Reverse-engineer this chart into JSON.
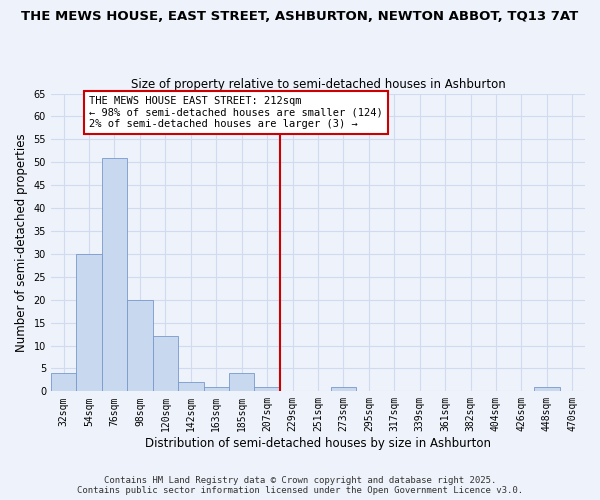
{
  "title": "THE MEWS HOUSE, EAST STREET, ASHBURTON, NEWTON ABBOT, TQ13 7AT",
  "subtitle": "Size of property relative to semi-detached houses in Ashburton",
  "xlabel": "Distribution of semi-detached houses by size in Ashburton",
  "ylabel": "Number of semi-detached properties",
  "bar_color": "#c8d8ee",
  "bar_edge_color": "#7799cc",
  "background_color": "#eef2fa",
  "grid_color": "#d0daf0",
  "categories": [
    "32sqm",
    "54sqm",
    "76sqm",
    "98sqm",
    "120sqm",
    "142sqm",
    "163sqm",
    "185sqm",
    "207sqm",
    "229sqm",
    "251sqm",
    "273sqm",
    "295sqm",
    "317sqm",
    "339sqm",
    "361sqm",
    "382sqm",
    "404sqm",
    "426sqm",
    "448sqm",
    "470sqm"
  ],
  "values": [
    4,
    30,
    51,
    20,
    12,
    2,
    1,
    4,
    1,
    0,
    0,
    1,
    0,
    0,
    0,
    0,
    0,
    0,
    0,
    1,
    0
  ],
  "ylim": [
    0,
    65
  ],
  "yticks": [
    0,
    5,
    10,
    15,
    20,
    25,
    30,
    35,
    40,
    45,
    50,
    55,
    60,
    65
  ],
  "vline_pos": 8.5,
  "vline_color": "#cc0000",
  "annotation_title": "THE MEWS HOUSE EAST STREET: 212sqm",
  "annotation_line1": "← 98% of semi-detached houses are smaller (124)",
  "annotation_line2": "2% of semi-detached houses are larger (3) →",
  "annotation_box_color": "#ffffff",
  "annotation_border_color": "#cc0000",
  "footer_line1": "Contains HM Land Registry data © Crown copyright and database right 2025.",
  "footer_line2": "Contains public sector information licensed under the Open Government Licence v3.0.",
  "title_fontsize": 9.5,
  "subtitle_fontsize": 8.5,
  "tick_fontsize": 7,
  "label_fontsize": 8.5,
  "footer_fontsize": 6.5
}
